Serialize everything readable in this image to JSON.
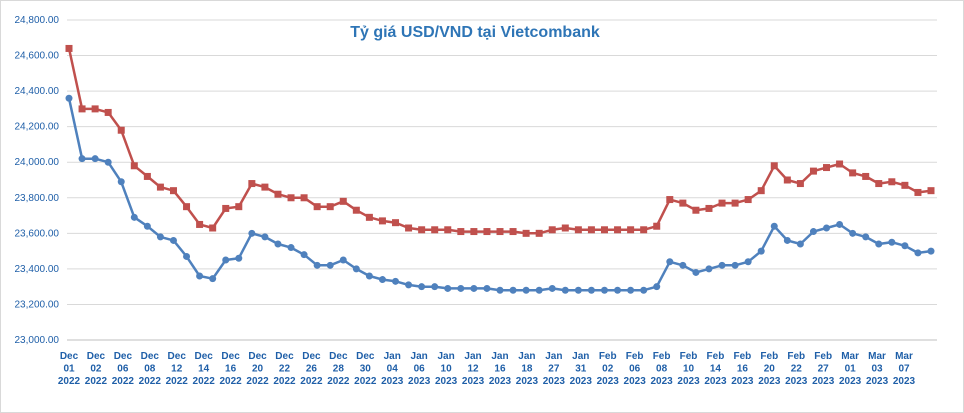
{
  "chart_data": {
    "type": "line",
    "title": "Tỷ giá USD/VND tại Vietcombank",
    "xlabel": "",
    "ylabel": "",
    "ylim": [
      23000,
      24800
    ],
    "yticks": [
      "23,000.00",
      "23,200.00",
      "23,400.00",
      "23,600.00",
      "23,800.00",
      "24,000.00",
      "24,200.00",
      "24,400.00",
      "24,600.00",
      "24,800.00"
    ],
    "grid": true,
    "legend": "none",
    "x_labels": [
      [
        "Dec",
        "01",
        "2022"
      ],
      [
        "Dec",
        "02",
        "2022"
      ],
      [
        "Dec",
        "06",
        "2022"
      ],
      [
        "Dec",
        "08",
        "2022"
      ],
      [
        "Dec",
        "12",
        "2022"
      ],
      [
        "Dec",
        "14",
        "2022"
      ],
      [
        "Dec",
        "16",
        "2022"
      ],
      [
        "Dec",
        "20",
        "2022"
      ],
      [
        "Dec",
        "22",
        "2022"
      ],
      [
        "Dec",
        "26",
        "2022"
      ],
      [
        "Dec",
        "28",
        "2022"
      ],
      [
        "Dec",
        "30",
        "2022"
      ],
      [
        "Jan",
        "04",
        "2023"
      ],
      [
        "Jan",
        "06",
        "2023"
      ],
      [
        "Jan",
        "10",
        "2023"
      ],
      [
        "Jan",
        "12",
        "2023"
      ],
      [
        "Jan",
        "16",
        "2023"
      ],
      [
        "Jan",
        "18",
        "2023"
      ],
      [
        "Jan",
        "27",
        "2023"
      ],
      [
        "Jan",
        "31",
        "2023"
      ],
      [
        "Feb",
        "02",
        "2023"
      ],
      [
        "Feb",
        "06",
        "2023"
      ],
      [
        "Feb",
        "08",
        "2023"
      ],
      [
        "Feb",
        "10",
        "2023"
      ],
      [
        "Feb",
        "14",
        "2023"
      ],
      [
        "Feb",
        "16",
        "2023"
      ],
      [
        "Feb",
        "20",
        "2023"
      ],
      [
        "Feb",
        "22",
        "2023"
      ],
      [
        "Feb",
        "27",
        "2023"
      ],
      [
        "Mar",
        "01",
        "2023"
      ],
      [
        "Mar",
        "03",
        "2023"
      ],
      [
        "Mar",
        "07",
        "2023"
      ]
    ],
    "series": [
      {
        "color": "#c0504d",
        "marker": "square",
        "values": [
          24640,
          24300,
          24300,
          24280,
          24180,
          23980,
          23920,
          23860,
          23840,
          23750,
          23650,
          23630,
          23740,
          23750,
          23880,
          23860,
          23820,
          23800,
          23800,
          23750,
          23750,
          23780,
          23730,
          23690,
          23670,
          23660,
          23630,
          23620,
          23620,
          23620,
          23610,
          23610,
          23610,
          23610,
          23610,
          23600,
          23600,
          23620,
          23630,
          23620,
          23620,
          23620,
          23620,
          23620,
          23620,
          23640,
          23790,
          23770,
          23730,
          23740,
          23770,
          23770,
          23790,
          23840,
          23980,
          23900,
          23880,
          23950,
          23970,
          23990,
          23940,
          23920,
          23880,
          23890,
          23870,
          23830,
          23840
        ]
      },
      {
        "color": "#4f81bd",
        "marker": "circle",
        "values": [
          24360,
          24020,
          24020,
          24000,
          23890,
          23690,
          23640,
          23580,
          23560,
          23470,
          23360,
          23345,
          23450,
          23460,
          23600,
          23580,
          23540,
          23520,
          23480,
          23420,
          23420,
          23450,
          23400,
          23360,
          23340,
          23330,
          23310,
          23300,
          23300,
          23290,
          23290,
          23290,
          23290,
          23280,
          23280,
          23280,
          23280,
          23290,
          23280,
          23280,
          23280,
          23280,
          23280,
          23280,
          23280,
          23300,
          23440,
          23420,
          23380,
          23400,
          23420,
          23420,
          23440,
          23500,
          23640,
          23560,
          23540,
          23610,
          23630,
          23650,
          23600,
          23580,
          23540,
          23550,
          23530,
          23490,
          23500
        ]
      }
    ]
  }
}
